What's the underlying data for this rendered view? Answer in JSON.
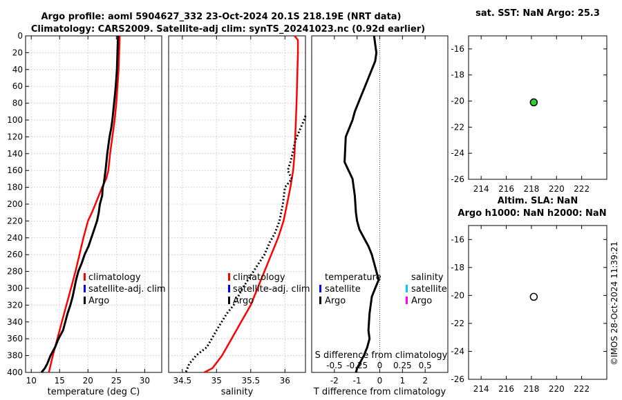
{
  "title_line1": "Argo profile: aoml 5904627_332 23-Oct-2024 20.1S 218.19E (NRT data)",
  "title_line2": "Climatology: CARS2009. Satellite-adj clim: synTS_20241023.nc (0.92d earlier)",
  "stamp": "©IMOS 28-Oct-2024 11:39:21",
  "colors": {
    "climatology": "#ff0000",
    "satellite": "#0000ff",
    "argo": "#000000",
    "cyan": "#00ccff",
    "magenta": "#ff00ff",
    "marker_green": "#33cc33",
    "grid": "#d4d4d4"
  },
  "chart_data": [
    {
      "type": "line",
      "id": "temperature",
      "xlabel": "temperature (deg C)",
      "ylabel": "",
      "xlim": [
        9,
        33
      ],
      "ylim": [
        400,
        0
      ],
      "xticks": [
        10,
        15,
        20,
        25,
        30
      ],
      "yticks": [
        0,
        20,
        40,
        60,
        80,
        100,
        120,
        140,
        160,
        180,
        200,
        220,
        240,
        260,
        280,
        300,
        320,
        340,
        360,
        380,
        400
      ],
      "grid": true,
      "legend": {
        "entries": [
          "climatology",
          "satellite-adj. clim",
          "Argo"
        ],
        "position": "center-right"
      },
      "series": [
        {
          "name": "climatology",
          "style": "solid",
          "color": "#ff0000",
          "x": [
            25.6,
            25.5,
            25.4,
            25.2,
            25.0,
            24.7,
            24.3,
            23.9,
            23.6,
            23.2,
            22.5,
            21.9,
            21.3,
            20.7,
            20.0,
            19.2,
            18.5,
            17.8,
            17.0,
            16.2,
            15.4,
            14.6,
            13.8,
            13.1
          ],
          "y": [
            0,
            20,
            40,
            60,
            80,
            100,
            120,
            140,
            160,
            170,
            180,
            190,
            200,
            210,
            220,
            240,
            260,
            280,
            300,
            320,
            340,
            360,
            380,
            400
          ]
        },
        {
          "name": "Argo",
          "style": "solid",
          "color": "#000000",
          "x": [
            25.3,
            25.2,
            25.1,
            24.9,
            24.6,
            24.3,
            24.1,
            23.8,
            23.4,
            23.1,
            22.8,
            22.6,
            22.5,
            22.3,
            22.1,
            21.9,
            21.6,
            21.1,
            20.6,
            20.1,
            19.4,
            18.9,
            18.3,
            17.9,
            17.6,
            17.3,
            16.9,
            16.4,
            16.0,
            15.6,
            14.8,
            14.2,
            13.4,
            12.8,
            12.4,
            11.8
          ],
          "y": [
            0,
            20,
            40,
            60,
            80,
            100,
            110,
            120,
            140,
            160,
            175,
            180,
            190,
            195,
            200,
            210,
            220,
            230,
            240,
            250,
            260,
            270,
            280,
            290,
            300,
            310,
            320,
            330,
            340,
            350,
            360,
            370,
            380,
            390,
            395,
            400
          ]
        }
      ]
    },
    {
      "type": "line",
      "id": "salinity",
      "xlabel": "salinity",
      "ylabel": "",
      "xlim": [
        34.3,
        36.3
      ],
      "ylim": [
        400,
        0
      ],
      "xticks": [
        "34.5",
        "35",
        "35.5",
        "36"
      ],
      "grid": true,
      "legend": {
        "entries": [
          "climatology",
          "satellite-adj. clim",
          "Argo"
        ],
        "position": "center-right"
      },
      "series": [
        {
          "name": "climatology",
          "style": "solid",
          "color": "#ff0000",
          "x": [
            36.14,
            36.19,
            36.19,
            36.18,
            36.17,
            36.15,
            36.14,
            36.12,
            36.08,
            36.03,
            35.98,
            35.9,
            35.8,
            35.7,
            35.6,
            35.5,
            35.36,
            35.22,
            35.08,
            34.94,
            34.82
          ],
          "y": [
            0,
            5,
            20,
            50,
            80,
            120,
            140,
            160,
            180,
            200,
            220,
            240,
            260,
            280,
            300,
            320,
            340,
            360,
            380,
            395,
            400
          ]
        },
        {
          "name": "Argo",
          "style": "dotted",
          "color": "#000000",
          "x": [
            36.3,
            36.28,
            36.2,
            36.15,
            36.11,
            36.08,
            36.04,
            36.1,
            36.0,
            35.97,
            35.92,
            35.85,
            35.78,
            35.7,
            35.62,
            35.5,
            35.38,
            35.25,
            35.15,
            35.0,
            34.86,
            34.7,
            34.6,
            34.55
          ],
          "y": [
            95,
            100,
            115,
            125,
            140,
            150,
            160,
            170,
            180,
            200,
            220,
            235,
            245,
            260,
            270,
            285,
            300,
            320,
            330,
            350,
            370,
            380,
            390,
            400
          ]
        }
      ]
    },
    {
      "type": "line",
      "id": "difference",
      "xlabel": "T difference from climatology",
      "xlabel2": "S difference from climatology",
      "ylabel": "",
      "xlim": [
        -3,
        3
      ],
      "ylim": [
        400,
        0
      ],
      "xticks": [
        "-2",
        "-1",
        "0",
        "1",
        "2"
      ],
      "xticks2": [
        "-0.5",
        "-0.25",
        "0",
        "0.25",
        "0.5"
      ],
      "grid": false,
      "legend": {
        "entries": [
          "temperature",
          "satellite",
          "Argo",
          "salinity",
          "satellite",
          "Argo"
        ],
        "position": "center"
      },
      "series": [
        {
          "name": "temperature Argo",
          "style": "solid",
          "color": "#000000",
          "x": [
            -0.25,
            -0.2,
            -0.15,
            -0.2,
            -0.35,
            -0.5,
            -0.65,
            -0.8,
            -0.95,
            -1.1,
            -1.2,
            -1.35,
            -1.5,
            -1.55,
            -1.2,
            -1.1,
            -1.05,
            -1.0,
            -0.9,
            -0.7,
            -0.5,
            -0.35,
            -0.25,
            -0.15,
            -0.05,
            -0.2,
            -0.35,
            -0.45,
            -0.5,
            -0.45,
            -0.55,
            -0.7,
            -0.9,
            -1.0,
            -1.05
          ],
          "y": [
            0,
            10,
            20,
            30,
            40,
            50,
            60,
            70,
            80,
            90,
            100,
            110,
            120,
            150,
            170,
            190,
            210,
            220,
            230,
            240,
            250,
            260,
            270,
            280,
            290,
            300,
            310,
            330,
            350,
            360,
            370,
            380,
            390,
            395,
            400
          ]
        }
      ]
    },
    {
      "type": "scatter",
      "id": "sst-map",
      "title": "sat. SST: NaN Argo: 25.3",
      "xlim": [
        213,
        224
      ],
      "ylim": [
        -26,
        -15
      ],
      "xticks": [
        214,
        216,
        218,
        220,
        222
      ],
      "yticks": [
        -16,
        -18,
        -20,
        -22,
        -24,
        -26
      ],
      "grid": false,
      "points": [
        {
          "x": 218.19,
          "y": -20.1,
          "marker": "filled-circle"
        }
      ]
    },
    {
      "type": "scatter",
      "id": "sla-map",
      "title": "Altim. SLA: NaN",
      "subtitle": "Argo h1000: NaN h2000: NaN",
      "xlim": [
        213,
        224
      ],
      "ylim": [
        -26,
        -15
      ],
      "xticks": [
        214,
        216,
        218,
        220,
        222
      ],
      "yticks": [
        -16,
        -18,
        -20,
        -22,
        -24,
        -26
      ],
      "grid": false,
      "points": [
        {
          "x": 218.19,
          "y": -20.1,
          "marker": "open-circle"
        }
      ]
    }
  ]
}
